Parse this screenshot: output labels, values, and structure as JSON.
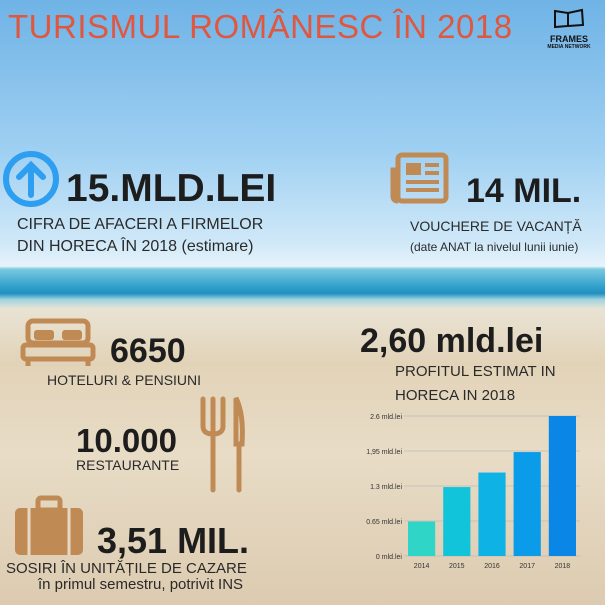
{
  "title": "TURISMUL ROMÂNESC ÎN 2018",
  "logo": {
    "line1": "FRAMES",
    "line2": "MEDIA NETWORK"
  },
  "colors": {
    "title": "#e0573f",
    "icons": "#c08a55",
    "arrow": "#2e9ef0"
  },
  "stats": [
    {
      "icon": "arrow-up-circle-icon",
      "value": "15.MLD.LEI",
      "label1": "CIFRA DE AFACERI A FIRMELOR",
      "label2": "DIN HORECA ÎN 2018 (estimare)"
    },
    {
      "icon": "newspaper-icon",
      "value": "14 MIL.",
      "label1": "VOUCHERE DE VACANȚĂ",
      "label2": "(date ANAT la nivelul lunii iunie)"
    },
    {
      "icon": "bed-icon",
      "value": "6650",
      "label1": "HOTELURI & PENSIUNI"
    },
    {
      "icon": "fork-knife-icon",
      "value": "10.000",
      "label1": "RESTAURANTE"
    },
    {
      "icon": "suitcase-icon",
      "value": "3,51 MIL.",
      "label1": "SOSIRI ÎN UNITĂȚILE DE CAZARE",
      "label2": "în primul semestru, potrivit INS"
    },
    {
      "value": "2,60 mld.lei",
      "label1": "PROFITUL ESTIMAT IN",
      "label2": "HORECA IN 2018"
    }
  ],
  "chart_data": {
    "type": "bar",
    "categories": [
      "2014",
      "2015",
      "2016",
      "2017",
      "2018"
    ],
    "values": [
      0.64,
      1.28,
      1.55,
      1.93,
      2.6
    ],
    "yticks": [
      "0 mld.lei",
      "0.65 mld.lei",
      "1.3 mld.lei",
      "1,95 mld.lei",
      "2.6 mld.lei"
    ],
    "ylim": [
      0,
      2.6
    ],
    "grid": true,
    "colors": [
      "#2fd6c8",
      "#12c4da",
      "#0fb2e4",
      "#0a9ce8",
      "#0a86e6"
    ]
  }
}
